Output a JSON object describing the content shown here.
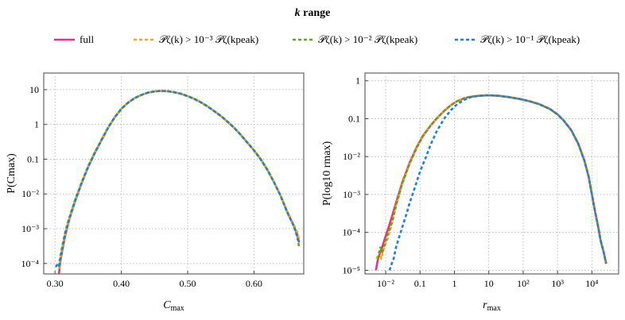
{
  "chart_data": {
    "type": "line",
    "legend": {
      "title_italic": "k",
      "title_rest": " range",
      "placement": "top-center",
      "entries": [
        {
          "key": "full",
          "label": "full",
          "color": "#e8318c",
          "dash": "solid"
        },
        {
          "key": "1e-3",
          "label": "𝒫ζ(k) > 10⁻³ 𝒫ζ(kpeak)",
          "color": "#f6a623",
          "dash": "dashed"
        },
        {
          "key": "1e-2",
          "label": "𝒫ζ(k) > 10⁻² 𝒫ζ(kpeak)",
          "color": "#6aa115",
          "dash": "dashed"
        },
        {
          "key": "1e-1",
          "label": "𝒫ζ(k) > 10⁻¹ 𝒫ζ(kpeak)",
          "color": "#1f7fdc",
          "dash": "dashed"
        }
      ]
    },
    "panels": [
      {
        "id": "left",
        "xlabel_main": "C",
        "xlabel_sub": "max",
        "ylabel": "P(Cmax)",
        "xscale": "linear",
        "yscale": "log",
        "xlim": [
          0.283,
          0.675
        ],
        "ylim": [
          5e-05,
          30
        ],
        "xticks": [
          0.3,
          0.4,
          0.5,
          0.6
        ],
        "xtick_labels": [
          "0.30",
          "0.40",
          "0.50",
          "0.60"
        ],
        "yticks": [
          0.0001,
          0.001,
          0.01,
          0.1,
          1,
          10
        ],
        "ytick_labels": [
          "10⁻⁴",
          "10⁻³",
          "10⁻²",
          "0.1",
          "1",
          "10"
        ],
        "grid": true,
        "series": {
          "full": {
            "x": [
              0.306,
              0.307,
              0.309,
              0.312,
              0.316,
              0.322,
              0.33,
              0.34,
              0.35,
              0.36,
              0.37,
              0.38,
              0.39,
              0.4,
              0.41,
              0.42,
              0.43,
              0.44,
              0.45,
              0.46,
              0.47,
              0.48,
              0.49,
              0.5,
              0.51,
              0.52,
              0.53,
              0.54,
              0.55,
              0.56,
              0.57,
              0.58,
              0.59,
              0.6,
              0.61,
              0.62,
              0.63,
              0.64,
              0.65,
              0.66,
              0.665,
              0.668
            ],
            "y": [
              5e-05,
              8e-05,
              0.00015,
              0.0003,
              0.0007,
              0.002,
              0.006,
              0.02,
              0.06,
              0.15,
              0.35,
              0.8,
              1.6,
              2.8,
              4.2,
              5.7,
              7.0,
              8.2,
              8.9,
              9.2,
              9.0,
              8.4,
              7.6,
              6.5,
              5.4,
              4.3,
              3.3,
              2.4,
              1.75,
              1.2,
              0.8,
              0.5,
              0.3,
              0.18,
              0.1,
              0.05,
              0.022,
              0.009,
              0.003,
              0.0012,
              0.0007,
              0.0004
            ]
          },
          "1e-3": {
            "x": [
              0.306,
              0.307,
              0.309,
              0.312,
              0.316,
              0.322,
              0.33,
              0.34,
              0.35,
              0.36,
              0.37,
              0.38,
              0.39,
              0.4,
              0.41,
              0.42,
              0.43,
              0.44,
              0.45,
              0.46,
              0.47,
              0.48,
              0.49,
              0.5,
              0.51,
              0.52,
              0.53,
              0.54,
              0.55,
              0.56,
              0.57,
              0.58,
              0.59,
              0.6,
              0.61,
              0.62,
              0.63,
              0.64,
              0.65,
              0.66,
              0.665,
              0.668
            ],
            "y": [
              7e-05,
              0.0001,
              0.00018,
              0.00035,
              0.0008,
              0.0021,
              0.0063,
              0.021,
              0.062,
              0.155,
              0.36,
              0.81,
              1.6,
              2.8,
              4.2,
              5.7,
              7.0,
              8.2,
              8.9,
              9.2,
              9.0,
              8.4,
              7.6,
              6.5,
              5.4,
              4.3,
              3.3,
              2.4,
              1.75,
              1.2,
              0.8,
              0.5,
              0.3,
              0.18,
              0.1,
              0.05,
              0.022,
              0.009,
              0.0032,
              0.0013,
              0.0008,
              0.0005
            ]
          },
          "1e-2": {
            "x": [
              0.306,
              0.307,
              0.309,
              0.312,
              0.316,
              0.322,
              0.33,
              0.34,
              0.35,
              0.36,
              0.37,
              0.38,
              0.39,
              0.4,
              0.41,
              0.42,
              0.43,
              0.44,
              0.45,
              0.46,
              0.47,
              0.48,
              0.49,
              0.5,
              0.51,
              0.52,
              0.53,
              0.54,
              0.55,
              0.56,
              0.57,
              0.58,
              0.59,
              0.6,
              0.61,
              0.62,
              0.63,
              0.64,
              0.65,
              0.66,
              0.665,
              0.668
            ],
            "y": [
              8e-05,
              0.00012,
              0.0002,
              0.0004,
              0.0009,
              0.0022,
              0.0065,
              0.021,
              0.063,
              0.156,
              0.36,
              0.81,
              1.6,
              2.8,
              4.2,
              5.7,
              7.0,
              8.2,
              8.9,
              9.2,
              9.0,
              8.4,
              7.6,
              6.5,
              5.4,
              4.3,
              3.3,
              2.4,
              1.75,
              1.2,
              0.8,
              0.5,
              0.3,
              0.18,
              0.1,
              0.05,
              0.022,
              0.009,
              0.0031,
              0.0012,
              0.0006,
              0.0003
            ]
          },
          "1e-1": {
            "x": [
              0.301,
              0.303,
              0.305,
              0.307,
              0.309,
              0.312,
              0.316,
              0.322,
              0.33,
              0.34,
              0.35,
              0.36,
              0.37,
              0.38,
              0.39,
              0.4,
              0.41,
              0.42,
              0.43,
              0.44,
              0.45,
              0.46,
              0.47,
              0.48,
              0.49,
              0.5,
              0.51,
              0.52,
              0.53,
              0.54,
              0.55,
              0.56,
              0.57,
              0.58,
              0.59,
              0.6,
              0.61,
              0.62,
              0.63,
              0.64,
              0.65,
              0.66,
              0.665,
              0.668
            ],
            "y": [
              8e-05,
              9e-05,
              8e-05,
              0.0001,
              0.00016,
              0.00032,
              0.0008,
              0.002,
              0.006,
              0.02,
              0.06,
              0.15,
              0.35,
              0.8,
              1.6,
              2.8,
              4.2,
              5.7,
              7.0,
              8.2,
              8.9,
              9.2,
              9.0,
              8.4,
              7.6,
              6.5,
              5.4,
              4.3,
              3.3,
              2.4,
              1.75,
              1.2,
              0.8,
              0.5,
              0.3,
              0.18,
              0.1,
              0.05,
              0.022,
              0.009,
              0.003,
              0.0012,
              0.0006,
              0.0004
            ]
          }
        }
      },
      {
        "id": "right",
        "xlabel_main": "r",
        "xlabel_sub": "max",
        "ylabel": "P(log10 rmax)",
        "xscale": "log",
        "yscale": "log",
        "xlim": [
          0.0025,
          60000
        ],
        "ylim": [
          8e-06,
          1.6
        ],
        "xticks": [
          0.01,
          0.1,
          1,
          10,
          100,
          1000,
          10000
        ],
        "xtick_labels": [
          "10⁻²",
          "0.1",
          "1",
          "10",
          "10²",
          "10³",
          "10⁴"
        ],
        "yticks": [
          1e-05,
          0.0001,
          0.001,
          0.01,
          0.1,
          1
        ],
        "ytick_labels": [
          "10⁻⁵",
          "10⁻⁴",
          "10⁻³",
          "10⁻²",
          "0.1",
          "1"
        ],
        "grid": true,
        "series": {
          "full": {
            "x": [
              0.0052,
              0.006,
              0.007,
              0.0085,
              0.01,
              0.012,
              0.015,
              0.02,
              0.03,
              0.05,
              0.08,
              0.12,
              0.2,
              0.3,
              0.5,
              0.8,
              1.2,
              2,
              3,
              5,
              8,
              12,
              20,
              40,
              80,
              150,
              300,
              600,
              1000,
              1500,
              2500,
              4000,
              6000,
              8000,
              10000,
              12000,
              15000,
              18000,
              22000,
              26000
            ],
            "y": [
              1e-05,
              2e-05,
              3e-05,
              5e-05,
              8e-05,
              0.00013,
              0.00025,
              0.0006,
              0.002,
              0.007,
              0.018,
              0.035,
              0.065,
              0.1,
              0.16,
              0.23,
              0.29,
              0.35,
              0.38,
              0.4,
              0.41,
              0.41,
              0.4,
              0.37,
              0.33,
              0.29,
              0.24,
              0.18,
              0.13,
              0.09,
              0.05,
              0.022,
              0.008,
              0.003,
              0.001,
              0.0004,
              0.00015,
              6e-05,
              3e-05,
              1.5e-05
            ]
          },
          "1e-3": {
            "x": [
              0.0055,
              0.0065,
              0.0075,
              0.009,
              0.011,
              0.013,
              0.016,
              0.02,
              0.03,
              0.05,
              0.08,
              0.12,
              0.2,
              0.3,
              0.5,
              0.8,
              1.2,
              2,
              3,
              5,
              8,
              12,
              20,
              40,
              80,
              150,
              300,
              600,
              1000,
              1500,
              2500,
              4000,
              6000,
              8000,
              10000,
              12000,
              15000,
              18000,
              22000,
              26000
            ],
            "y": [
              2e-05,
              3e-05,
              2e-05,
              4e-05,
              6e-05,
              0.0001,
              0.0002,
              0.0005,
              0.0018,
              0.0065,
              0.017,
              0.034,
              0.064,
              0.1,
              0.16,
              0.23,
              0.29,
              0.35,
              0.38,
              0.4,
              0.41,
              0.41,
              0.4,
              0.37,
              0.33,
              0.29,
              0.24,
              0.18,
              0.13,
              0.09,
              0.05,
              0.022,
              0.008,
              0.003,
              0.001,
              0.0004,
              0.00015,
              6e-05,
              3e-05,
              1.5e-05
            ]
          },
          "1e-2": {
            "x": [
              0.006,
              0.007,
              0.008,
              0.0095,
              0.011,
              0.013,
              0.016,
              0.02,
              0.03,
              0.05,
              0.08,
              0.12,
              0.2,
              0.3,
              0.5,
              0.8,
              1.2,
              2,
              3,
              5,
              8,
              12,
              20,
              40,
              80,
              150,
              300,
              600,
              1000,
              1500,
              2500,
              4000,
              6000,
              8000,
              10000,
              12000,
              15000,
              18000,
              22000,
              26000
            ],
            "y": [
              2e-05,
              4e-05,
              3e-05,
              5e-05,
              8e-05,
              0.00012,
              0.00022,
              0.0005,
              0.0019,
              0.0066,
              0.017,
              0.034,
              0.064,
              0.1,
              0.16,
              0.23,
              0.29,
              0.35,
              0.38,
              0.4,
              0.41,
              0.41,
              0.4,
              0.37,
              0.33,
              0.29,
              0.24,
              0.18,
              0.13,
              0.09,
              0.05,
              0.022,
              0.008,
              0.003,
              0.001,
              0.0004,
              0.00015,
              6e-05,
              3e-05,
              1.5e-05
            ]
          },
          "1e-1": {
            "x": [
              0.013,
              0.015,
              0.017,
              0.02,
              0.024,
              0.03,
              0.04,
              0.05,
              0.07,
              0.1,
              0.15,
              0.2,
              0.3,
              0.5,
              0.8,
              1.2,
              2,
              3,
              5,
              8,
              12,
              20,
              40,
              80,
              150,
              300,
              600,
              1000,
              1500,
              2500,
              4000,
              6000,
              8000,
              10000,
              12000,
              15000,
              18000,
              22000,
              26000
            ],
            "y": [
              1e-05,
              1.5e-05,
              2e-05,
              4e-05,
              7e-05,
              0.00013,
              0.0003,
              0.0006,
              0.0015,
              0.004,
              0.01,
              0.02,
              0.045,
              0.1,
              0.17,
              0.24,
              0.32,
              0.37,
              0.4,
              0.41,
              0.41,
              0.4,
              0.37,
              0.33,
              0.29,
              0.24,
              0.18,
              0.13,
              0.09,
              0.05,
              0.022,
              0.008,
              0.003,
              0.001,
              0.0004,
              0.00015,
              6e-05,
              3e-05,
              1.5e-05
            ]
          }
        }
      }
    ]
  }
}
